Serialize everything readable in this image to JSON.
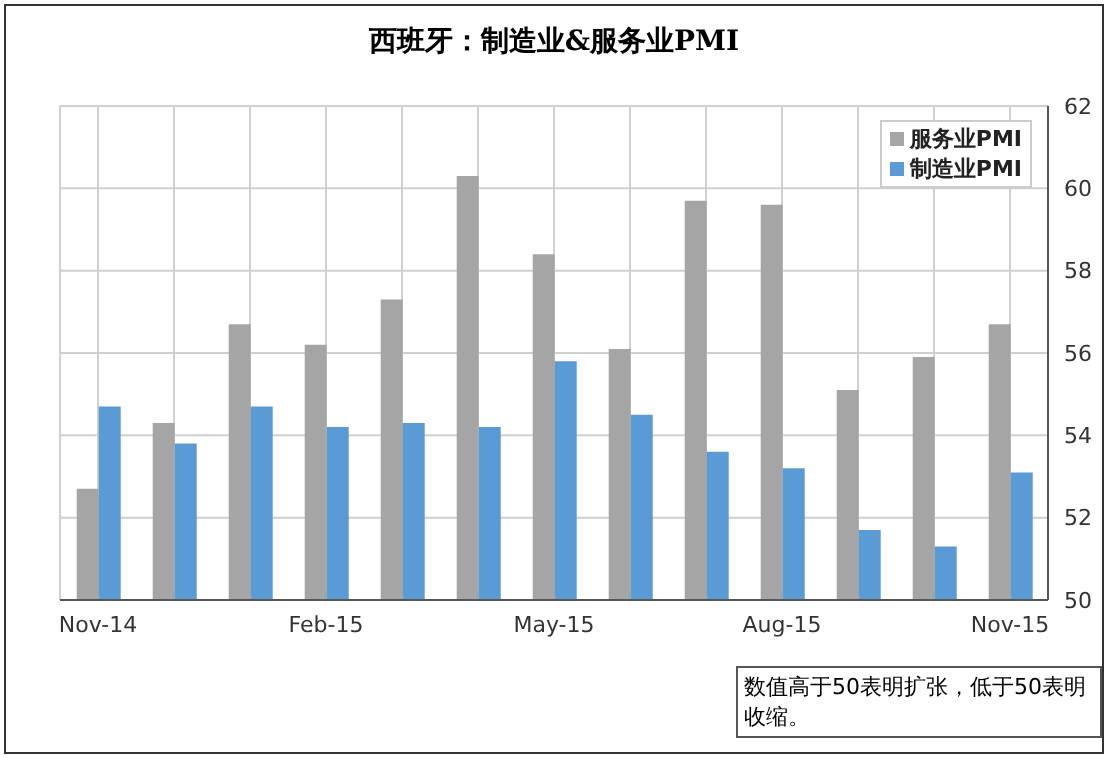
{
  "chart_data": {
    "type": "bar",
    "title": "西班牙：制造业&服务业PMI",
    "categories": [
      "Nov-14",
      null,
      null,
      "Feb-15",
      null,
      null,
      "May-15",
      null,
      null,
      "Aug-15",
      null,
      null,
      "Nov-15"
    ],
    "series": [
      {
        "name": "服务业PMI",
        "color": "#a5a5a5",
        "values": [
          52.7,
          54.3,
          56.7,
          56.2,
          57.3,
          60.3,
          58.4,
          56.1,
          59.7,
          59.6,
          55.1,
          55.9,
          56.7
        ]
      },
      {
        "name": "制造业PMI",
        "color": "#5b9bd5",
        "values": [
          54.7,
          53.8,
          54.7,
          54.2,
          54.3,
          54.2,
          55.8,
          54.5,
          53.6,
          53.2,
          51.7,
          51.3,
          53.1
        ]
      }
    ],
    "ylim": [
      50,
      62
    ],
    "yticks": [
      50,
      52,
      54,
      56,
      58,
      60,
      62
    ],
    "grid": true,
    "legend": "top right",
    "annotations": [
      "数值高于50表明扩张，低于50表明收缩。"
    ]
  }
}
